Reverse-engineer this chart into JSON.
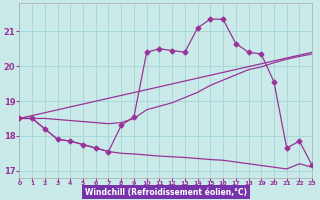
{
  "xlabel": "Windchill (Refroidissement éolien,°C)",
  "bg_color": "#caeaea",
  "grid_color": "#a8d8d8",
  "line_color": "#993399",
  "label_bg": "#7733aa",
  "xlim": [
    0,
    23
  ],
  "ylim": [
    16.8,
    21.8
  ],
  "xticks": [
    0,
    1,
    2,
    3,
    4,
    5,
    6,
    7,
    8,
    9,
    10,
    11,
    12,
    13,
    14,
    15,
    16,
    17,
    18,
    19,
    20,
    21,
    22,
    23
  ],
  "yticks": [
    17,
    18,
    19,
    20,
    21
  ],
  "line1_x": [
    0,
    1,
    2,
    3,
    4,
    5,
    6,
    7,
    8,
    9,
    10,
    11,
    12,
    13,
    14,
    15,
    16,
    17,
    18,
    19,
    20,
    21,
    22,
    23
  ],
  "line1_y": [
    18.5,
    18.5,
    18.2,
    17.9,
    17.85,
    17.75,
    17.65,
    17.55,
    18.3,
    18.55,
    20.4,
    20.5,
    20.45,
    20.4,
    21.1,
    21.35,
    21.35,
    20.65,
    20.4,
    20.35,
    19.55,
    17.65,
    17.85,
    17.15
  ],
  "line2_x": [
    0,
    23
  ],
  "line2_y": [
    18.5,
    20.4
  ],
  "line3_x": [
    0,
    1,
    2,
    3,
    4,
    5,
    6,
    7,
    8,
    9,
    10,
    11,
    12,
    13,
    14,
    15,
    16,
    17,
    18,
    19,
    20,
    21,
    22,
    23
  ],
  "line3_y": [
    18.5,
    18.5,
    18.5,
    18.47,
    18.44,
    18.41,
    18.38,
    18.35,
    18.38,
    18.5,
    18.75,
    18.85,
    18.95,
    19.1,
    19.25,
    19.45,
    19.6,
    19.75,
    19.9,
    19.98,
    20.1,
    20.2,
    20.28,
    20.35
  ],
  "line4_x": [
    0,
    1,
    2,
    3,
    4,
    5,
    6,
    7,
    8,
    9,
    10,
    11,
    12,
    13,
    14,
    15,
    16,
    17,
    18,
    19,
    20,
    21,
    22,
    23
  ],
  "line4_y": [
    18.5,
    18.5,
    18.2,
    17.9,
    17.85,
    17.75,
    17.65,
    17.55,
    17.5,
    17.48,
    17.45,
    17.42,
    17.4,
    17.38,
    17.35,
    17.32,
    17.3,
    17.25,
    17.2,
    17.15,
    17.1,
    17.05,
    17.2,
    17.1
  ]
}
